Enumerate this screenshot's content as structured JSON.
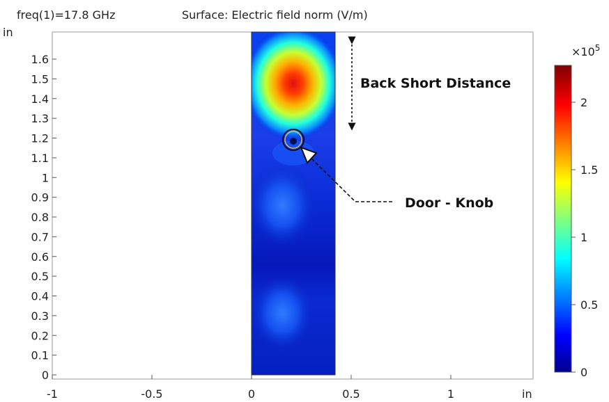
{
  "header": {
    "freq_label": "freq(1)=17.8 GHz",
    "surface_label": "Surface: Electric field norm (V/m)"
  },
  "axes": {
    "y_unit": "in",
    "x_unit": "in",
    "x_ticks": [
      "-1",
      "-0.5",
      "0",
      "0.5",
      "1"
    ],
    "y_ticks": [
      "0",
      "0.1",
      "0.2",
      "0.3",
      "0.4",
      "0.5",
      "0.6",
      "0.7",
      "0.8",
      "0.9",
      "1",
      "1.1",
      "1.2",
      "1.3",
      "1.4",
      "1.5",
      "1.6"
    ]
  },
  "colorbar": {
    "multiplier": "×10",
    "exponent": "5",
    "ticks": [
      "0",
      "0.5",
      "1",
      "1.5",
      "2"
    ],
    "colormap": [
      "#00008f",
      "#0000ff",
      "#00ffff",
      "#ffff00",
      "#ff0000",
      "#800000"
    ]
  },
  "annotations": {
    "back_short": "Back Short Distance",
    "door_knob": "Door - Knob"
  }
}
